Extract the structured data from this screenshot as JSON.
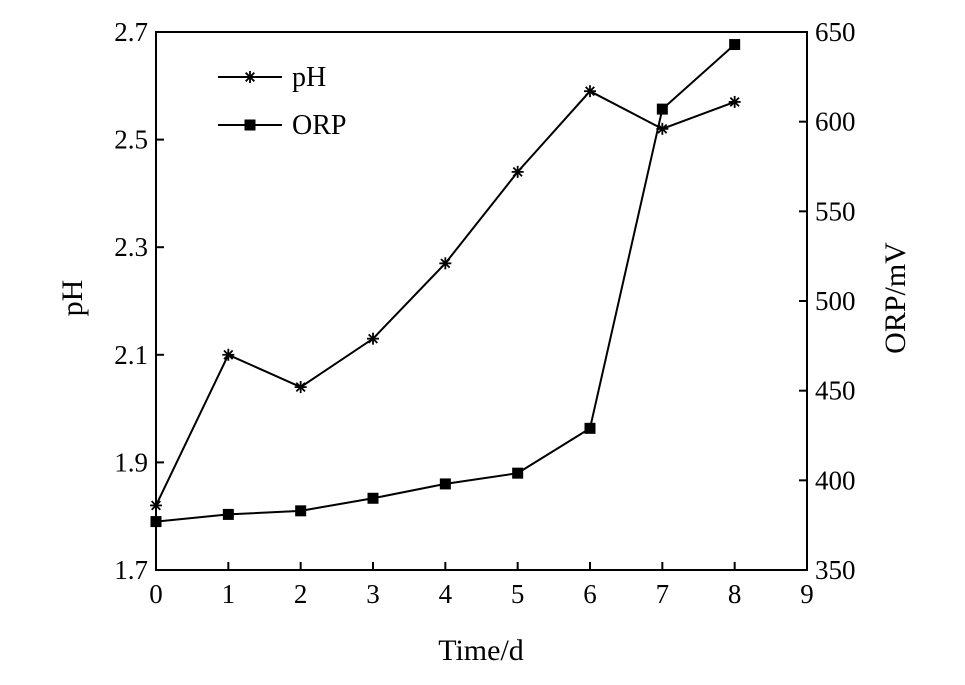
{
  "chart_data": {
    "type": "line",
    "xlabel": "Time/d",
    "ylabel_left": "pH",
    "ylabel_right": "ORP/mV",
    "xlim": [
      0,
      9
    ],
    "ylim_left": [
      1.7,
      2.7
    ],
    "ylim_right": [
      350,
      650
    ],
    "x_ticks": [
      "0",
      "1",
      "2",
      "3",
      "4",
      "5",
      "6",
      "7",
      "8",
      "9"
    ],
    "y_left_ticks": [
      "1.7",
      "1.9",
      "2.1",
      "2.3",
      "2.5",
      "2.7"
    ],
    "y_right_ticks": [
      "350",
      "400",
      "450",
      "500",
      "550",
      "600",
      "650"
    ],
    "grid": false,
    "legend_position": "top-left",
    "series": [
      {
        "name": "pH",
        "axis": "left",
        "marker": "asterisk",
        "color": "#000000",
        "x": [
          0,
          1,
          2,
          3,
          4,
          5,
          6,
          7,
          8
        ],
        "y": [
          1.82,
          2.1,
          2.04,
          2.13,
          2.27,
          2.44,
          2.59,
          2.52,
          2.57
        ]
      },
      {
        "name": "ORP",
        "axis": "right",
        "marker": "square",
        "color": "#000000",
        "x": [
          0,
          1,
          2,
          3,
          4,
          5,
          6,
          7,
          8
        ],
        "y": [
          377,
          381,
          383,
          390,
          398,
          404,
          429,
          607,
          643
        ]
      }
    ]
  }
}
